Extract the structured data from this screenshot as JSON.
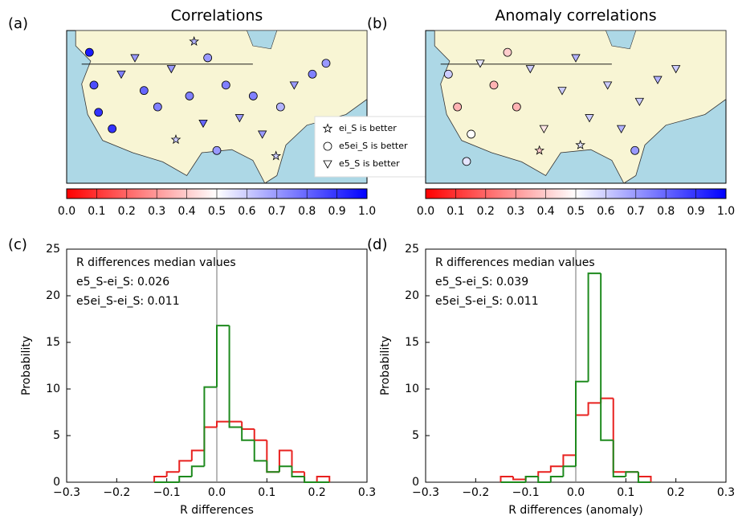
{
  "chart_data": [
    {
      "type": "map",
      "panel": "(a)",
      "title": "Correlations",
      "legend": [
        "ei_S is better",
        "e5ei_S is better",
        "e5_S is better"
      ],
      "colorbar_ticks": [
        {
          "value": 0,
          "label": "0.0"
        },
        0.1,
        0.2,
        0.3,
        0.4,
        0.5,
        0.6,
        0.7,
        0.8,
        0.9,
        {
          "value": 1,
          "label": "1.0"
        }
      ],
      "clim": [
        0,
        1
      ],
      "stations": [
        {
          "lon": -123,
          "lat": 48,
          "value": 0.95,
          "marker": "circle"
        },
        {
          "lon": -122,
          "lat": 42,
          "value": 0.85,
          "marker": "circle"
        },
        {
          "lon": -121,
          "lat": 37,
          "value": 0.9,
          "marker": "circle"
        },
        {
          "lon": -118,
          "lat": 34,
          "value": 0.9,
          "marker": "circle"
        },
        {
          "lon": -116,
          "lat": 44,
          "value": 0.75,
          "marker": "triangle"
        },
        {
          "lon": -113,
          "lat": 47,
          "value": 0.7,
          "marker": "triangle"
        },
        {
          "lon": -111,
          "lat": 41,
          "value": 0.8,
          "marker": "circle"
        },
        {
          "lon": -108,
          "lat": 38,
          "value": 0.75,
          "marker": "circle"
        },
        {
          "lon": -105,
          "lat": 45,
          "value": 0.7,
          "marker": "triangle"
        },
        {
          "lon": -101,
          "lat": 40,
          "value": 0.75,
          "marker": "circle"
        },
        {
          "lon": -98,
          "lat": 35,
          "value": 0.8,
          "marker": "triangle"
        },
        {
          "lon": -97,
          "lat": 47,
          "value": 0.7,
          "marker": "circle"
        },
        {
          "lon": -93,
          "lat": 42,
          "value": 0.75,
          "marker": "circle"
        },
        {
          "lon": -90,
          "lat": 36,
          "value": 0.7,
          "marker": "triangle"
        },
        {
          "lon": -87,
          "lat": 40,
          "value": 0.75,
          "marker": "circle"
        },
        {
          "lon": -85,
          "lat": 33,
          "value": 0.7,
          "marker": "triangle"
        },
        {
          "lon": -81,
          "lat": 38,
          "value": 0.65,
          "marker": "circle"
        },
        {
          "lon": -78,
          "lat": 42,
          "value": 0.7,
          "marker": "triangle"
        },
        {
          "lon": -74,
          "lat": 44,
          "value": 0.75,
          "marker": "circle"
        },
        {
          "lon": -71,
          "lat": 46,
          "value": 0.7,
          "marker": "circle"
        },
        {
          "lon": -95,
          "lat": 30,
          "value": 0.7,
          "marker": "circle"
        },
        {
          "lon": -104,
          "lat": 32,
          "value": 0.6,
          "marker": "star"
        },
        {
          "lon": -100,
          "lat": 50,
          "value": 0.65,
          "marker": "star"
        },
        {
          "lon": -82,
          "lat": 29,
          "value": 0.6,
          "marker": "star"
        }
      ]
    },
    {
      "type": "map",
      "panel": "(b)",
      "title": "Anomaly correlations",
      "colorbar_ticks": [
        {
          "value": 0,
          "label": "0.0"
        },
        0.1,
        0.2,
        0.3,
        0.4,
        0.5,
        0.6,
        0.7,
        0.8,
        0.9,
        {
          "value": 1,
          "label": "1.0"
        }
      ],
      "clim": [
        0,
        1
      ],
      "stations": [
        {
          "lon": -123,
          "lat": 44,
          "value": 0.6,
          "marker": "circle"
        },
        {
          "lon": -121,
          "lat": 38,
          "value": 0.35,
          "marker": "circle"
        },
        {
          "lon": -118,
          "lat": 33,
          "value": 0.5,
          "marker": "circle"
        },
        {
          "lon": -116,
          "lat": 46,
          "value": 0.55,
          "marker": "triangle"
        },
        {
          "lon": -113,
          "lat": 42,
          "value": 0.35,
          "marker": "circle"
        },
        {
          "lon": -110,
          "lat": 48,
          "value": 0.4,
          "marker": "circle"
        },
        {
          "lon": -108,
          "lat": 38,
          "value": 0.35,
          "marker": "circle"
        },
        {
          "lon": -105,
          "lat": 45,
          "value": 0.6,
          "marker": "triangle"
        },
        {
          "lon": -102,
          "lat": 34,
          "value": 0.45,
          "marker": "triangle"
        },
        {
          "lon": -98,
          "lat": 41,
          "value": 0.6,
          "marker": "triangle"
        },
        {
          "lon": -95,
          "lat": 47,
          "value": 0.65,
          "marker": "triangle"
        },
        {
          "lon": -92,
          "lat": 36,
          "value": 0.6,
          "marker": "triangle"
        },
        {
          "lon": -88,
          "lat": 42,
          "value": 0.6,
          "marker": "triangle"
        },
        {
          "lon": -85,
          "lat": 34,
          "value": 0.65,
          "marker": "triangle"
        },
        {
          "lon": -81,
          "lat": 39,
          "value": 0.6,
          "marker": "triangle"
        },
        {
          "lon": -77,
          "lat": 43,
          "value": 0.65,
          "marker": "triangle"
        },
        {
          "lon": -73,
          "lat": 45,
          "value": 0.6,
          "marker": "triangle"
        },
        {
          "lon": -82,
          "lat": 30,
          "value": 0.7,
          "marker": "circle"
        },
        {
          "lon": -119,
          "lat": 28,
          "value": 0.55,
          "marker": "circle"
        },
        {
          "lon": -103,
          "lat": 30,
          "value": 0.4,
          "marker": "star"
        },
        {
          "lon": -94,
          "lat": 31,
          "value": 0.55,
          "marker": "star"
        }
      ]
    },
    {
      "type": "histogram",
      "panel": "(c)",
      "xlabel": "R differences",
      "ylabel": "Probability",
      "annotation": "R differences median values",
      "bins": [
        -0.125,
        -0.1,
        -0.075,
        -0.05,
        -0.025,
        0,
        0.025,
        0.05,
        0.075,
        0.1,
        0.125,
        0.15,
        0.175,
        0.2,
        0.225
      ],
      "series": [
        {
          "name": "e5_S-ei_S: 0.026",
          "color": "#e8211f",
          "values": [
            0.6,
            1.1,
            2.3,
            3.4,
            5.9,
            6.5,
            6.5,
            5.7,
            4.5,
            1.1,
            3.4,
            1.1,
            0,
            0.6
          ]
        },
        {
          "name": "e5ei_S-ei_S: 0.011",
          "color": "#1e8a1e",
          "values": [
            0,
            0,
            0.6,
            1.7,
            10.2,
            16.8,
            5.9,
            4.5,
            2.3,
            1.1,
            1.7,
            0.6,
            0,
            0
          ]
        }
      ],
      "xlim": [
        -0.3,
        0.3
      ],
      "ylim": [
        0,
        25
      ],
      "xticks": [
        {
          "value": -0.3,
          "label": "−0.3"
        },
        {
          "value": -0.2,
          "label": "−0.2"
        },
        {
          "value": -0.1,
          "label": "−0.1"
        },
        {
          "value": 0,
          "label": "0.0"
        },
        0.1,
        0.2,
        0.3
      ],
      "yticks": [
        0,
        5,
        10,
        15,
        20,
        25
      ]
    },
    {
      "type": "histogram",
      "panel": "(d)",
      "xlabel": "R differences (anomaly)",
      "ylabel": "Probability",
      "annotation": "R differences median values",
      "bins": [
        -0.15,
        -0.125,
        -0.1,
        -0.075,
        -0.05,
        -0.025,
        0,
        0.025,
        0.05,
        0.075,
        0.1,
        0.125,
        0.15
      ],
      "series": [
        {
          "name": "e5_S-ei_S: 0.039",
          "color": "#e8211f",
          "values": [
            0.6,
            0.3,
            0.6,
            1.1,
            1.7,
            2.9,
            7.2,
            8.5,
            9.0,
            1.1,
            1.1,
            0.6
          ]
        },
        {
          "name": "e5ei_S-ei_S: 0.011",
          "color": "#1e8a1e",
          "values": [
            0,
            0,
            0.6,
            0,
            0.6,
            1.7,
            10.8,
            22.4,
            4.5,
            0.6,
            1.1,
            0
          ]
        }
      ],
      "xlim": [
        -0.3,
        0.3
      ],
      "ylim": [
        0,
        25
      ],
      "xticks": [
        {
          "value": -0.3,
          "label": "−0.3"
        },
        {
          "value": -0.2,
          "label": "−0.2"
        },
        {
          "value": -0.1,
          "label": "−0.1"
        },
        {
          "value": 0,
          "label": "0.0"
        },
        0.1,
        0.2,
        0.3
      ],
      "yticks": [
        0,
        5,
        10,
        15,
        20,
        25
      ]
    }
  ]
}
